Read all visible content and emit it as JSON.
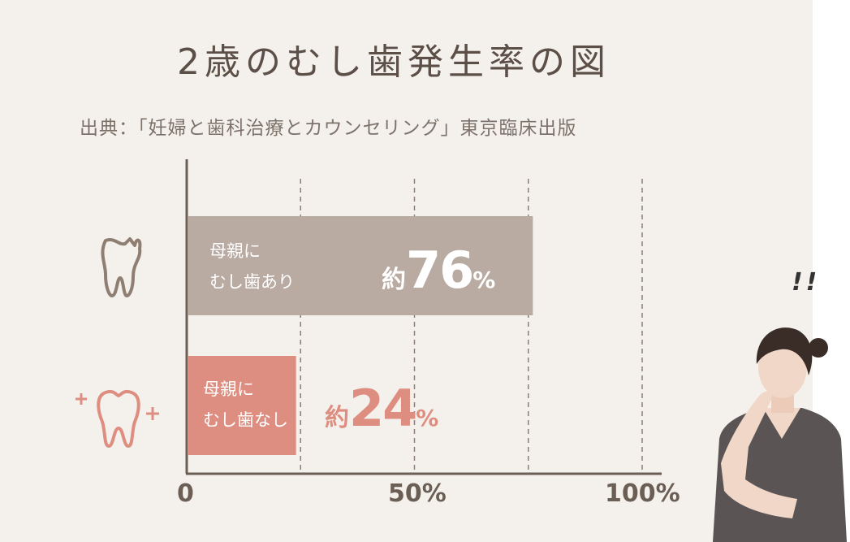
{
  "chart_data": {
    "type": "bar",
    "orientation": "horizontal",
    "title": "2歳のむし歯発生率の図",
    "subtitle": "出典：「妊婦と歯科治療とカウンセリング」東京臨床出版",
    "categories": [
      "母親にむし歯あり",
      "母親にむし歯なし"
    ],
    "category_lines": [
      [
        "母親に",
        "むし歯あり"
      ],
      [
        "母親に",
        "むし歯なし"
      ]
    ],
    "values": [
      76,
      24
    ],
    "value_prefix": "約",
    "value_suffix": "%",
    "xlim": [
      0,
      100
    ],
    "x_ticks": [
      "0",
      "50%",
      "100%"
    ],
    "grid": true,
    "bar_colors": [
      "#b9aaa2",
      "#de8e80"
    ],
    "value_colors": [
      "#ffffff",
      "#de8e80"
    ],
    "category_icons": [
      "decayed-tooth-icon",
      "healthy-tooth-icon"
    ],
    "icon_colors": [
      "#8f7e72",
      "#de8e80"
    ]
  },
  "decoration": {
    "exclamation": "!!"
  }
}
